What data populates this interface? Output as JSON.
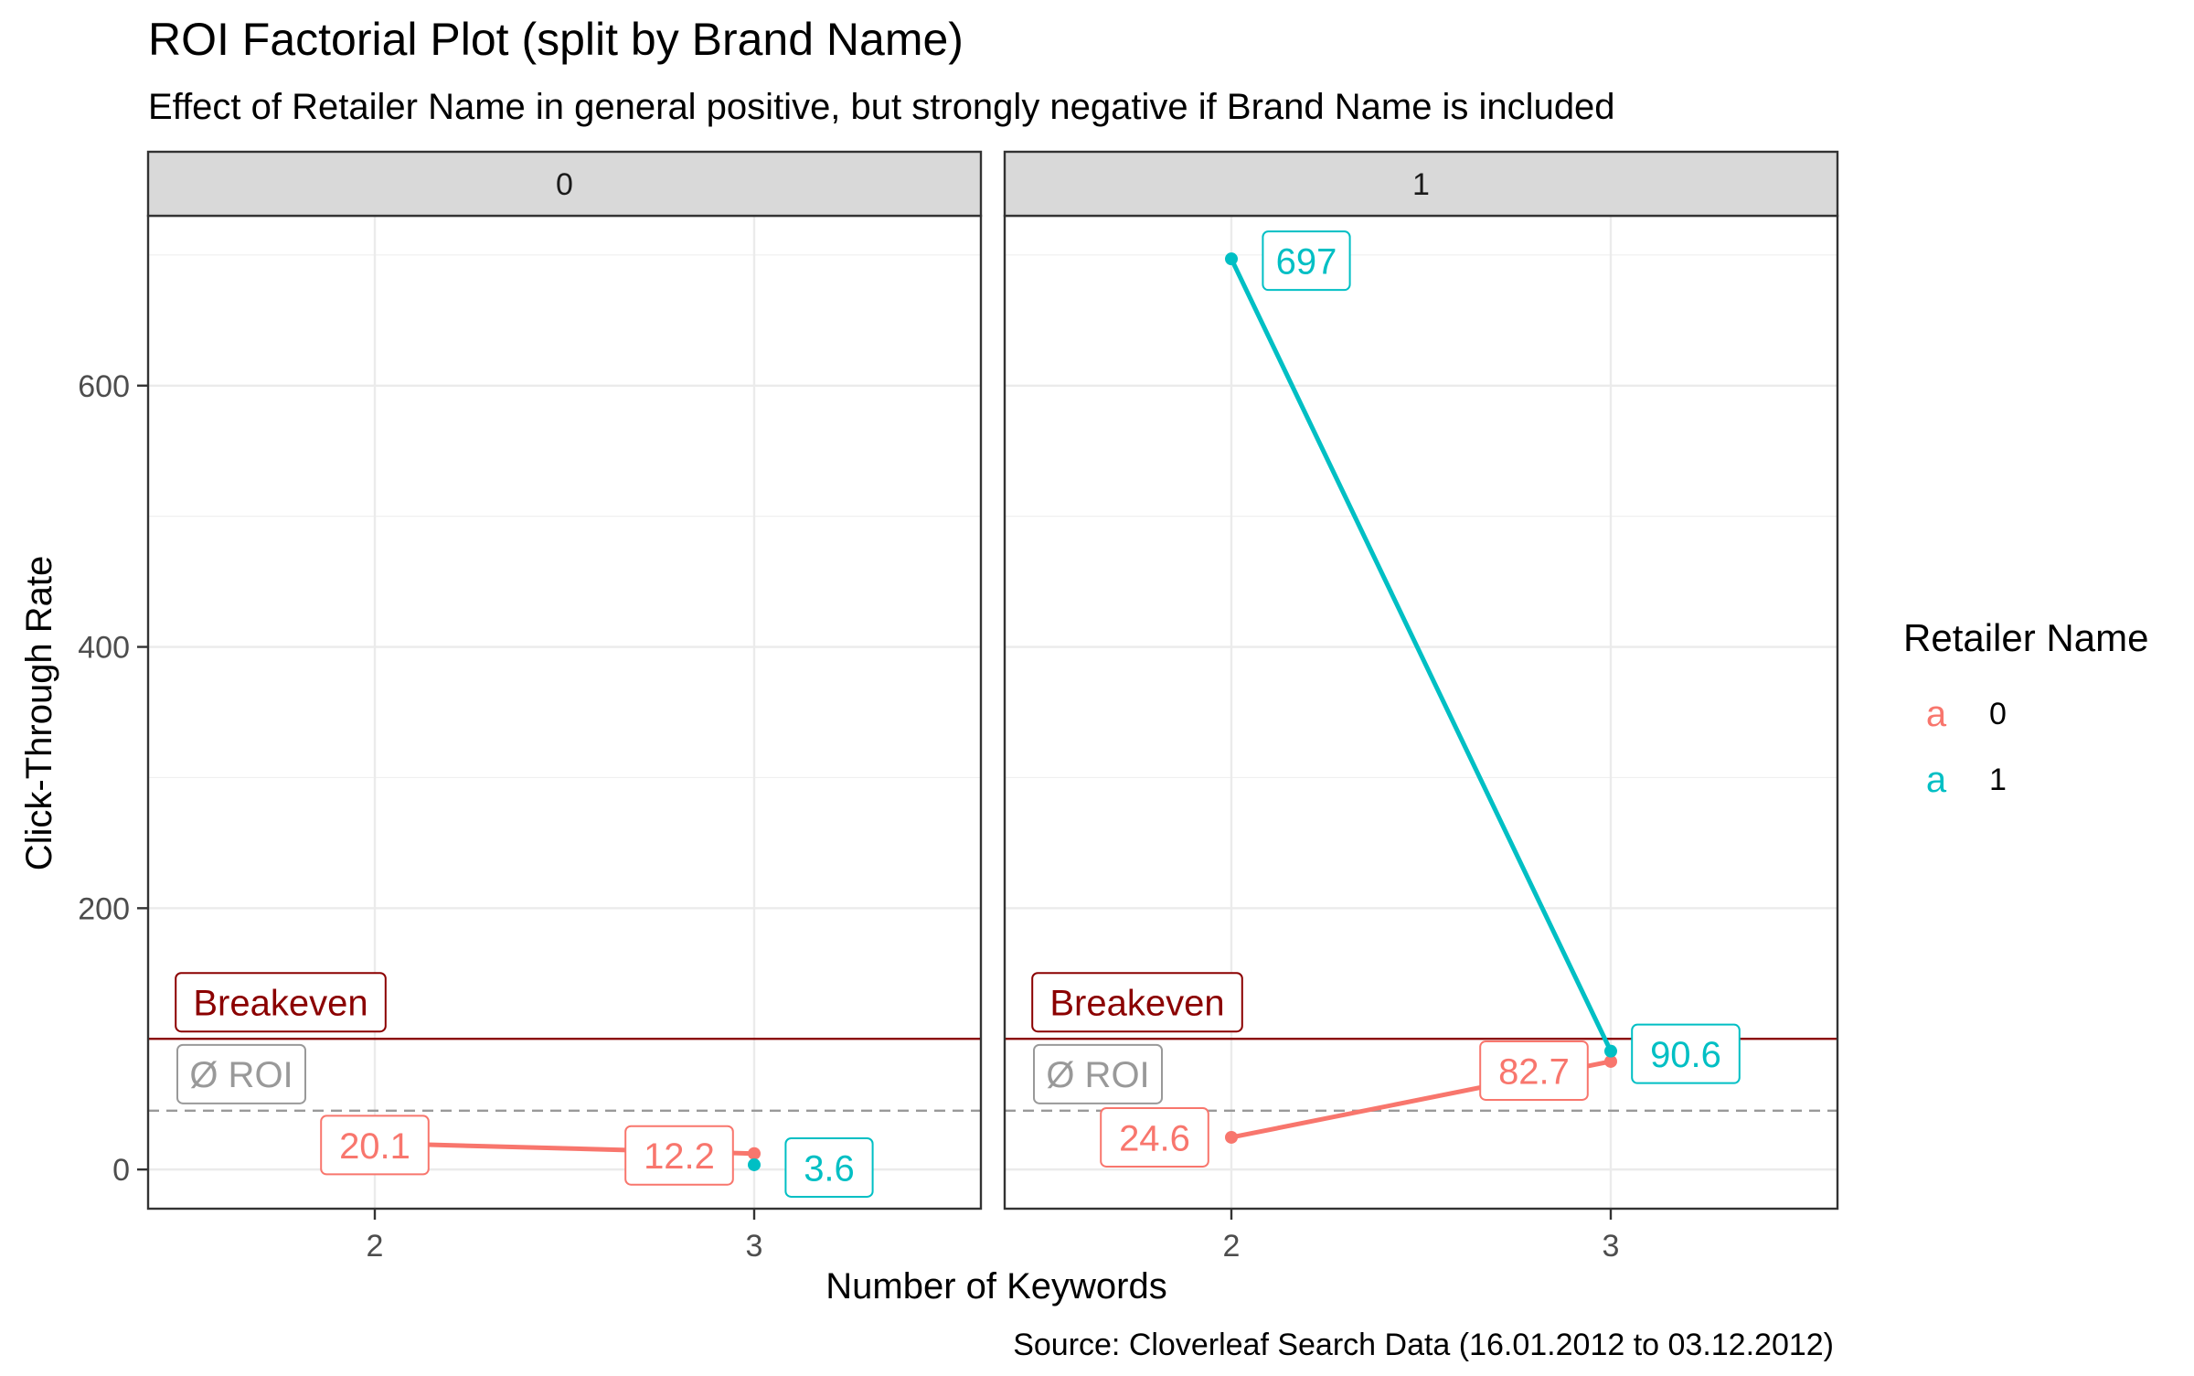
{
  "chart_data": {
    "type": "line",
    "title": "ROI Factorial Plot (split by Brand Name)",
    "subtitle": "Effect of Retailer Name in general positive, but strongly negative if Brand Name is included",
    "caption": "Source: Cloverleaf Search Data (16.01.2012 to 03.12.2012)",
    "xlabel": "Number of Keywords",
    "ylabel": "Click-Through Rate",
    "x_ticks": [
      "2",
      "3"
    ],
    "y_ticks": [
      0,
      200,
      400,
      600
    ],
    "ylim": [
      -30,
      730
    ],
    "grid": true,
    "legend": {
      "title": "Retailer Name",
      "position": "right",
      "entries": [
        {
          "label": "0",
          "color": "#F8766D",
          "key_glyph": "a"
        },
        {
          "label": "1",
          "color": "#00BFC4",
          "key_glyph": "a"
        }
      ]
    },
    "reference_lines": [
      {
        "label": "Breakeven",
        "y": 100,
        "color": "#8B0000",
        "style": "solid"
      },
      {
        "label": "Ø ROI",
        "y": 45,
        "color": "#999999",
        "style": "dashed"
      }
    ],
    "facets": [
      {
        "label": "0",
        "series": [
          {
            "retailer": "0",
            "color": "#F8766D",
            "x": [
              "2",
              "3"
            ],
            "y": [
              20.1,
              12.2
            ],
            "labels": [
              "20.1",
              "12.2"
            ]
          },
          {
            "retailer": "1",
            "color": "#00BFC4",
            "x": [
              "3"
            ],
            "y": [
              3.6
            ],
            "labels": [
              "3.6"
            ]
          }
        ]
      },
      {
        "label": "1",
        "series": [
          {
            "retailer": "0",
            "color": "#F8766D",
            "x": [
              "2",
              "3"
            ],
            "y": [
              24.6,
              82.7
            ],
            "labels": [
              "24.6",
              "82.7"
            ]
          },
          {
            "retailer": "1",
            "color": "#00BFC4",
            "x": [
              "2",
              "3"
            ],
            "y": [
              697,
              90.6
            ],
            "labels": [
              "697",
              "90.6"
            ]
          }
        ]
      }
    ]
  }
}
